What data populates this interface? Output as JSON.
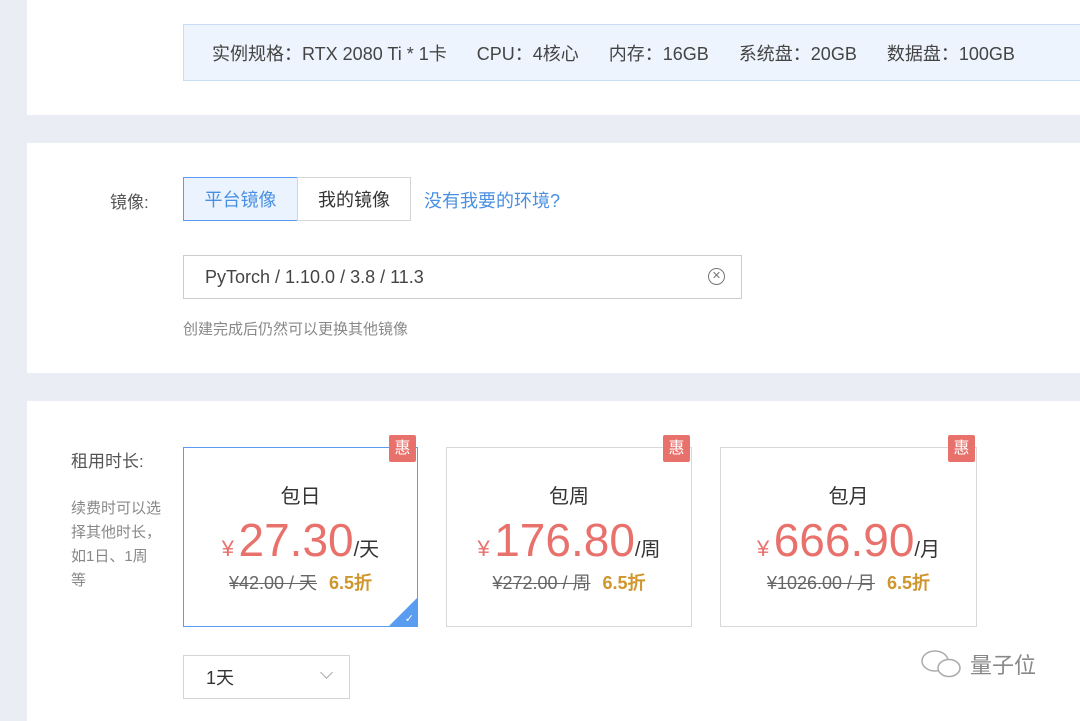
{
  "spec": {
    "items": [
      "实例规格：RTX 2080 Ti * 1卡",
      "CPU：4核心",
      "内存：16GB",
      "系统盘：20GB",
      "数据盘：100GB"
    ]
  },
  "image": {
    "label": "镜像:",
    "tabs": [
      "平台镜像",
      "我的镜像"
    ],
    "active_tab": 0,
    "link": "没有我要的环境?",
    "value": "PyTorch / 1.10.0 / 3.8 / 11.3",
    "hint": "创建完成后仍然可以更换其他镜像"
  },
  "rental": {
    "label": "租用时长:",
    "note": "续费时可以选择其他时长，如1日、1周等",
    "selected": 0,
    "cards": [
      {
        "badge": "惠",
        "title": "包日",
        "currency": "¥",
        "price": "27.30",
        "unit": "/天",
        "old": "¥42.00 / 天",
        "discount": "6.5折"
      },
      {
        "badge": "惠",
        "title": "包周",
        "currency": "¥",
        "price": "176.80",
        "unit": "/周",
        "old": "¥272.00 / 周",
        "discount": "6.5折"
      },
      {
        "badge": "惠",
        "title": "包月",
        "currency": "¥",
        "price": "666.90",
        "unit": "/月",
        "old": "¥1026.00 / 月",
        "discount": "6.5折"
      }
    ],
    "duration": "1天"
  },
  "watermark": "量子位",
  "colors": {
    "accent": "#4a90e2",
    "price": "#e8716c",
    "discount": "#d0962e"
  }
}
